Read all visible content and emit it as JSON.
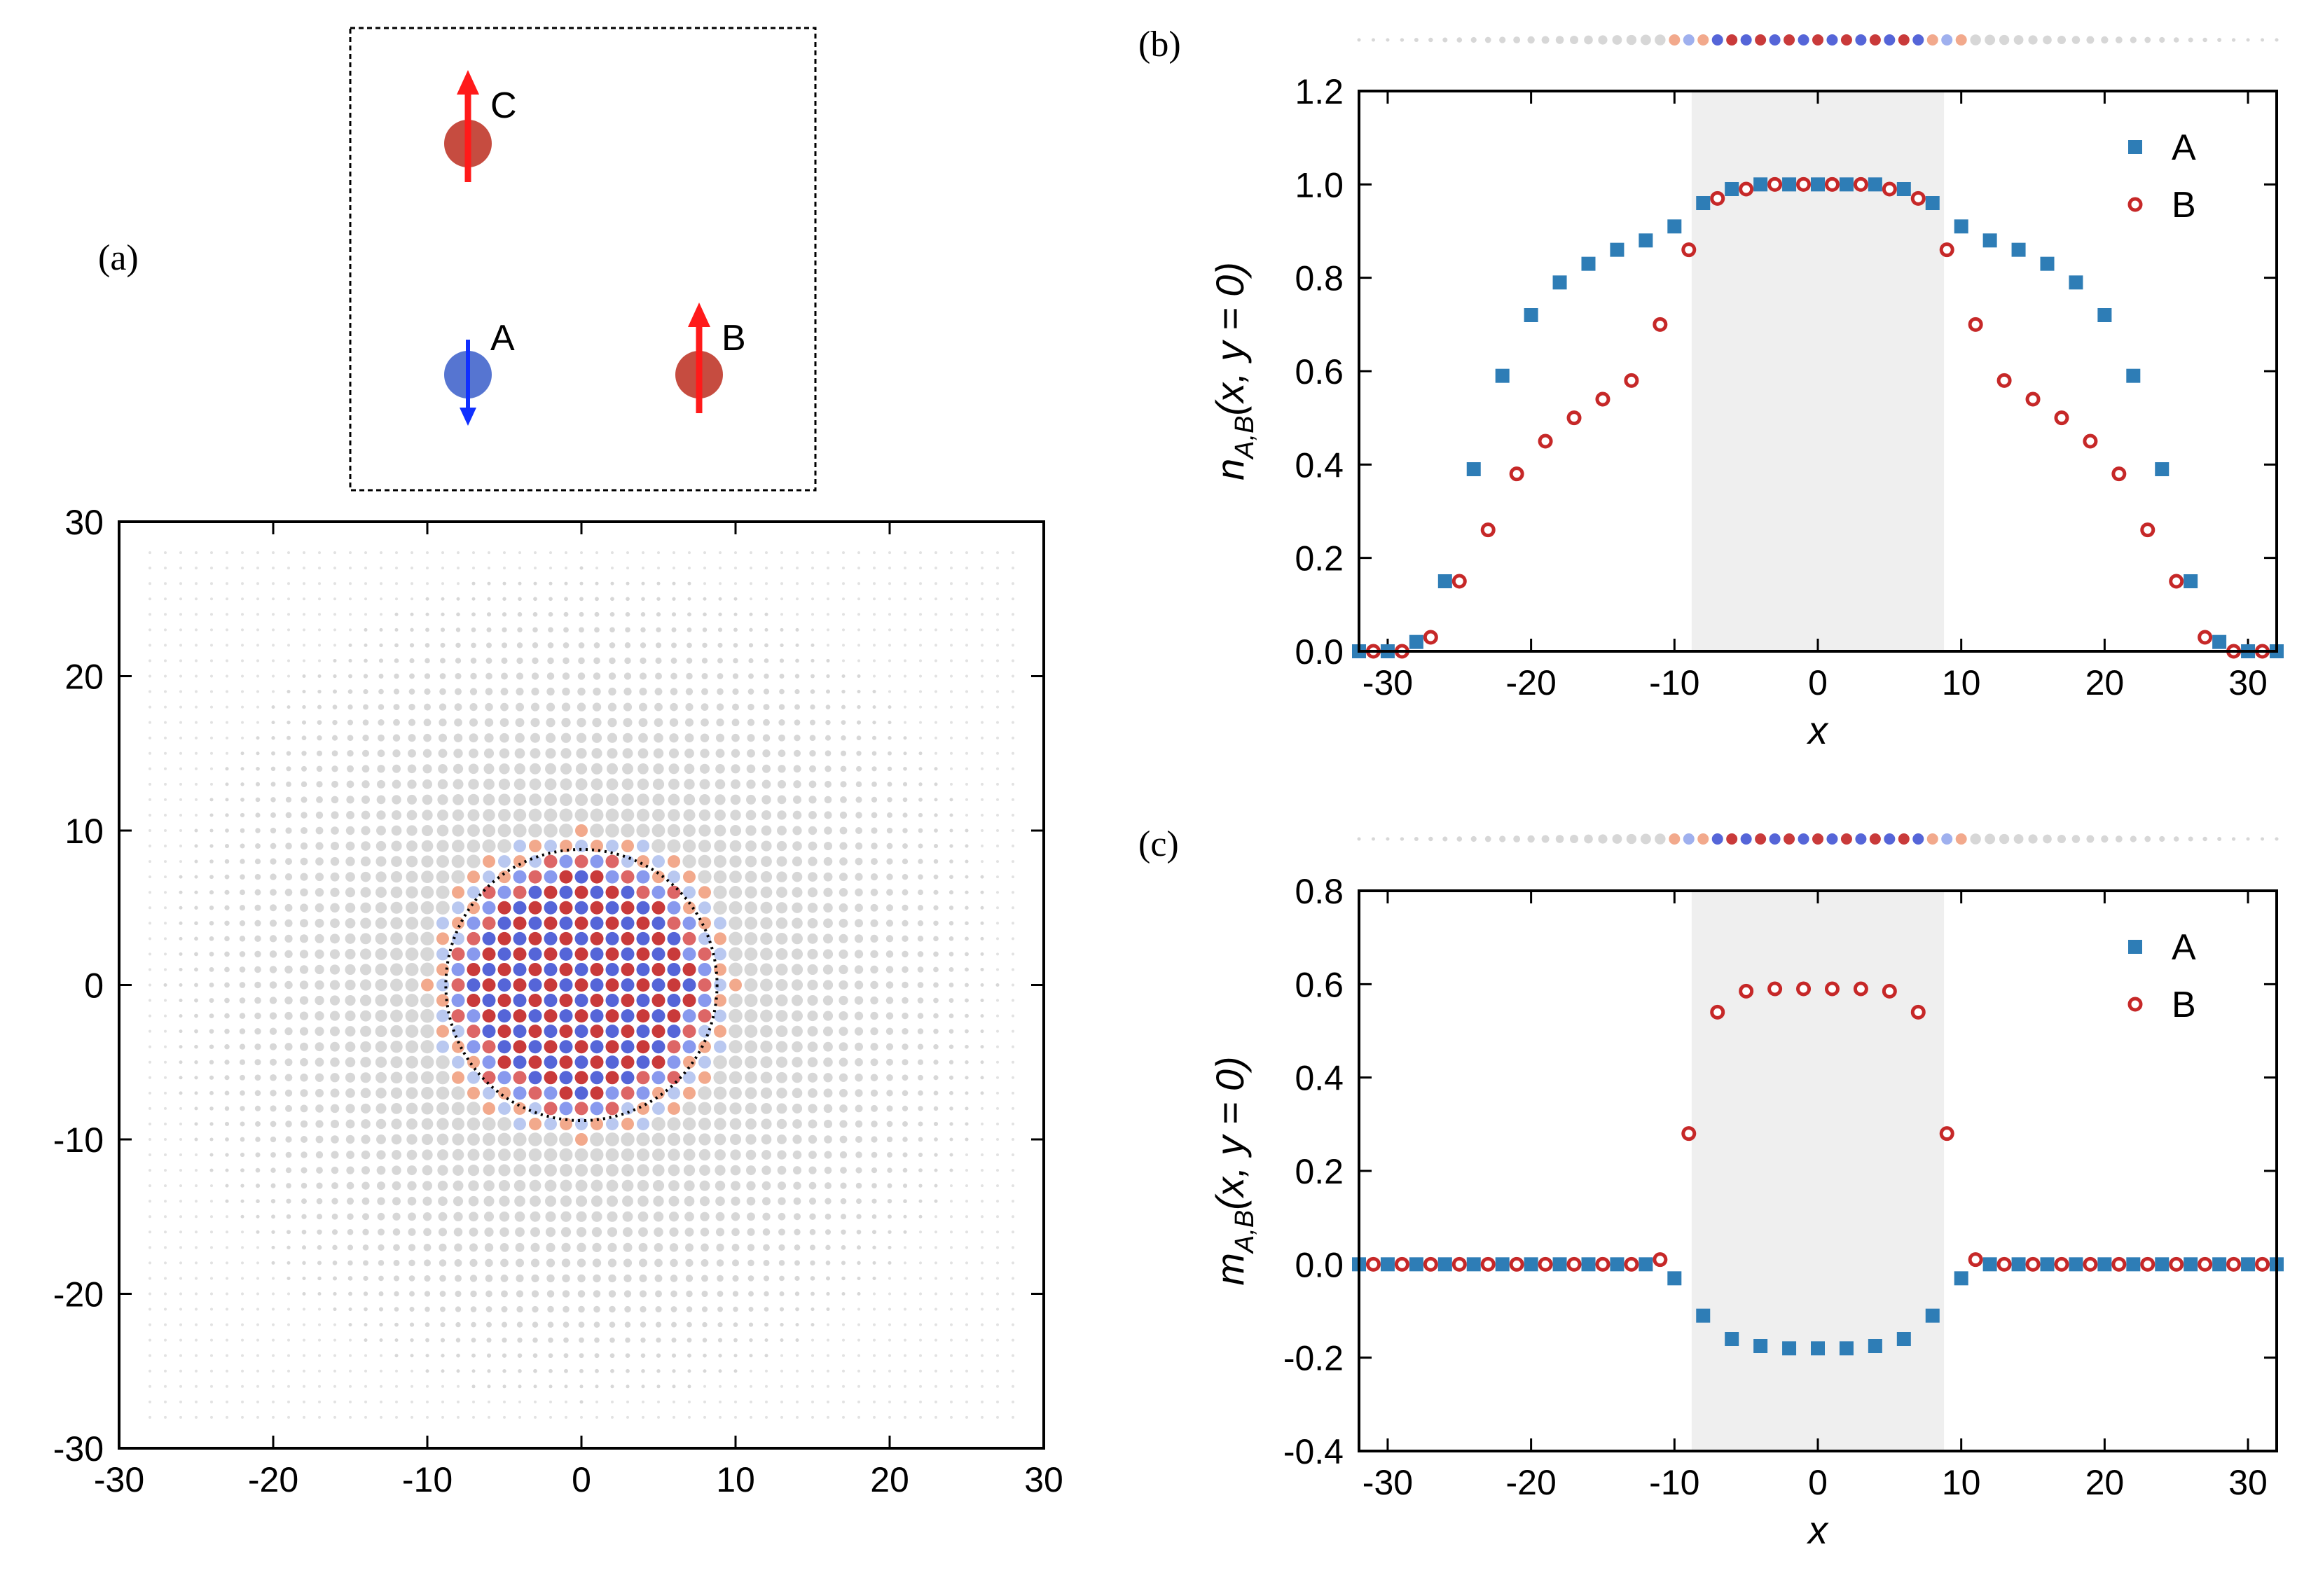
{
  "figure": {
    "panel_labels": [
      "(a)",
      "(b)",
      "(c)"
    ],
    "inset": {
      "sites": [
        {
          "name": "A",
          "spin": "down",
          "color": "#4466cc"
        },
        {
          "name": "B",
          "spin": "up",
          "color": "#c0392b"
        },
        {
          "name": "C",
          "spin": "up",
          "color": "#c0392b"
        }
      ]
    },
    "colors": {
      "A": "#2e7db6",
      "B": "#c62828",
      "shade": "#efefef",
      "neutral": "#d7d7d7"
    }
  },
  "chart_data": [
    {
      "type": "heatmap",
      "title": "(a)",
      "xlim": [
        -30,
        30
      ],
      "ylim": [
        -30,
        30
      ],
      "x_ticks": [
        -30,
        -20,
        -10,
        0,
        10,
        20,
        30
      ],
      "y_ticks": [
        -30,
        -20,
        -10,
        0,
        10,
        20,
        30
      ],
      "x_tick_labels": [
        "-30",
        "-20",
        "-10",
        "0",
        "10",
        "20",
        "30"
      ],
      "y_tick_labels": [
        "-30",
        "-20",
        "-10",
        "0",
        "10",
        "20",
        "30"
      ],
      "circle_radius": 8.8,
      "description_values": {
        "core_radius": 8.8,
        "outer_radius": 27
      }
    },
    {
      "type": "scatter",
      "title": "(b)",
      "xlabel": "x",
      "ylabel_main": "n",
      "ylabel_sub": "A,B",
      "ylabel_rest": "(x, y = 0)",
      "xlim": [
        -32,
        32
      ],
      "ylim": [
        0,
        1.2
      ],
      "x_ticks": [
        -30,
        -20,
        -10,
        0,
        10,
        20,
        30
      ],
      "x_tick_labels": [
        "-30",
        "-20",
        "-10",
        "0",
        "10",
        "20",
        "30"
      ],
      "y_ticks": [
        0,
        0.2,
        0.4,
        0.6,
        0.8,
        1.0,
        1.2
      ],
      "y_tick_labels": [
        "0.0",
        "0.2",
        "0.4",
        "0.6",
        "0.8",
        "1.0",
        "1.2"
      ],
      "shaded_region": [
        -8.8,
        8.8
      ],
      "legend": [
        "A",
        "B"
      ],
      "series": [
        {
          "name": "A",
          "x": [
            -32,
            -30,
            -28,
            -26,
            -24,
            -22,
            -20,
            -18,
            -16,
            -14,
            -12,
            -10,
            -8,
            -6,
            -4,
            -2,
            0,
            2,
            4,
            6,
            8,
            10,
            12,
            14,
            16,
            18,
            20,
            22,
            24,
            26,
            28,
            30,
            32
          ],
          "values": [
            0.0,
            0.0,
            0.02,
            0.15,
            0.39,
            0.59,
            0.72,
            0.79,
            0.83,
            0.86,
            0.88,
            0.91,
            0.96,
            0.99,
            1.0,
            1.0,
            1.0,
            1.0,
            1.0,
            0.99,
            0.96,
            0.91,
            0.88,
            0.86,
            0.83,
            0.79,
            0.72,
            0.59,
            0.39,
            0.15,
            0.02,
            0.0,
            0.0
          ]
        },
        {
          "name": "B",
          "x": [
            -31,
            -29,
            -27,
            -25,
            -23,
            -21,
            -19,
            -17,
            -15,
            -13,
            -11,
            -9,
            -7,
            -5,
            -3,
            -1,
            1,
            3,
            5,
            7,
            9,
            11,
            13,
            15,
            17,
            19,
            21,
            23,
            25,
            27,
            29,
            31
          ],
          "values": [
            0.0,
            0.0,
            0.03,
            0.15,
            0.26,
            0.38,
            0.45,
            0.5,
            0.54,
            0.58,
            0.7,
            0.86,
            0.97,
            0.99,
            1.0,
            1.0,
            1.0,
            1.0,
            0.99,
            0.97,
            0.86,
            0.7,
            0.58,
            0.54,
            0.5,
            0.45,
            0.38,
            0.26,
            0.15,
            0.03,
            0.0,
            0.0
          ]
        }
      ]
    },
    {
      "type": "scatter",
      "title": "(c)",
      "xlabel": "x",
      "ylabel_main": "m",
      "ylabel_sub": "A,B",
      "ylabel_rest": "(x, y = 0)",
      "xlim": [
        -32,
        32
      ],
      "ylim": [
        -0.4,
        0.8
      ],
      "x_ticks": [
        -30,
        -20,
        -10,
        0,
        10,
        20,
        30
      ],
      "x_tick_labels": [
        "-30",
        "-20",
        "-10",
        "0",
        "10",
        "20",
        "30"
      ],
      "y_ticks": [
        -0.4,
        -0.2,
        0,
        0.2,
        0.4,
        0.6,
        0.8
      ],
      "y_tick_labels": [
        "-0.4",
        "-0.2",
        "0.0",
        "0.2",
        "0.4",
        "0.6",
        "0.8"
      ],
      "shaded_region": [
        -8.8,
        8.8
      ],
      "legend": [
        "A",
        "B"
      ],
      "series": [
        {
          "name": "A",
          "x": [
            -32,
            -30,
            -28,
            -26,
            -24,
            -22,
            -20,
            -18,
            -16,
            -14,
            -12,
            -10,
            -8,
            -6,
            -4,
            -2,
            0,
            2,
            4,
            6,
            8,
            10,
            12,
            14,
            16,
            18,
            20,
            22,
            24,
            26,
            28,
            30,
            32
          ],
          "values": [
            0,
            0,
            0,
            0,
            0,
            0,
            0,
            0,
            0,
            0,
            0,
            -0.03,
            -0.11,
            -0.16,
            -0.175,
            -0.18,
            -0.18,
            -0.18,
            -0.175,
            -0.16,
            -0.11,
            -0.03,
            0,
            0,
            0,
            0,
            0,
            0,
            0,
            0,
            0,
            0,
            0
          ]
        },
        {
          "name": "B",
          "x": [
            -31,
            -29,
            -27,
            -25,
            -23,
            -21,
            -19,
            -17,
            -15,
            -13,
            -11,
            -9,
            -7,
            -5,
            -3,
            -1,
            1,
            3,
            5,
            7,
            9,
            11,
            13,
            15,
            17,
            19,
            21,
            23,
            25,
            27,
            29,
            31
          ],
          "values": [
            0,
            0,
            0,
            0,
            0,
            0,
            0,
            0,
            0,
            0,
            0.01,
            0.28,
            0.54,
            0.585,
            0.59,
            0.59,
            0.59,
            0.59,
            0.585,
            0.54,
            0.28,
            0.01,
            0,
            0,
            0,
            0,
            0,
            0,
            0,
            0,
            0,
            0
          ]
        }
      ]
    }
  ]
}
